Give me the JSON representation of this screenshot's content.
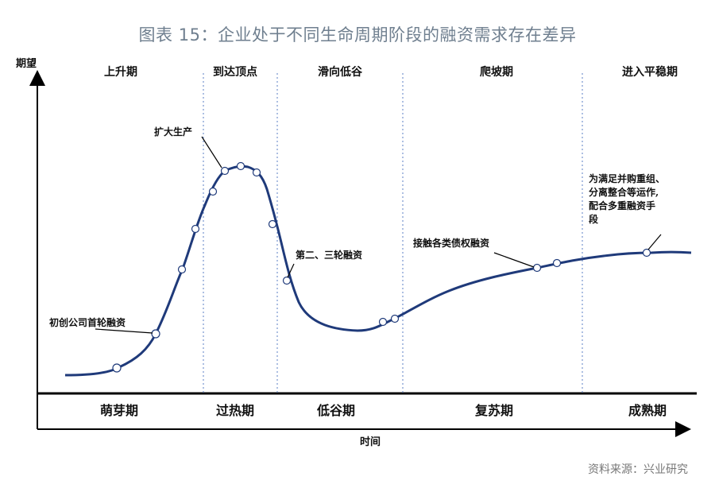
{
  "title": "图表 15：企业处于不同生命周期阶段的融资需求存在差异",
  "source": "资料来源：兴业研究",
  "y_axis_label": "期望",
  "x_axis_label": "时间",
  "top_phases": [
    "上升期",
    "到达顶点",
    "滑向低谷",
    "爬坡期",
    "进入平稳期"
  ],
  "bottom_phases": [
    "萌芽期",
    "过热期",
    "低谷期",
    "复苏期",
    "成熟期"
  ],
  "annotations": {
    "startup": "初创公司首轮融资",
    "expand": "扩大生产",
    "second_round": "第二、三轮融资",
    "debt": "接触各类债权融资",
    "mature_line1": "为满足并购重组、",
    "mature_line2": "分离整合等运作,",
    "mature_line3": "配合多重融资手",
    "mature_line4": "段"
  },
  "colors": {
    "curve": "#1f3a7a",
    "divider": "#5b7fc4",
    "axis": "#000000"
  }
}
